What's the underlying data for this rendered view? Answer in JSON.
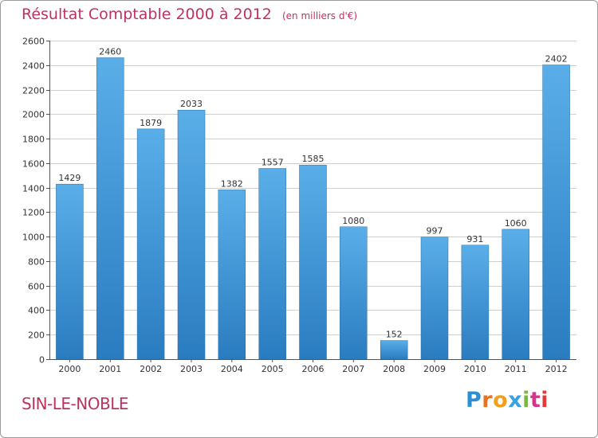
{
  "title": "Résultat Comptable 2000 à 2012",
  "subtitle": "(en milliers d'€)",
  "commune": "SIN-LE-NOBLE",
  "logo": {
    "text": "Proxiti",
    "letters": [
      "P",
      "r",
      "o",
      "x",
      "i",
      "t",
      "i"
    ]
  },
  "colors": {
    "title": "#c0325e",
    "bar_top": "#5aaee8",
    "bar_bottom": "#2a7cc0",
    "gridline": "#d0d0d0"
  },
  "chart_data": {
    "type": "bar",
    "title": "Résultat Comptable 2000 à 2012",
    "subtitle": "(en milliers d'€)",
    "categories": [
      "2000",
      "2001",
      "2002",
      "2003",
      "2004",
      "2005",
      "2006",
      "2007",
      "2008",
      "2009",
      "2010",
      "2011",
      "2012"
    ],
    "values": [
      1429,
      2460,
      1879,
      2033,
      1382,
      1557,
      1585,
      1080,
      152,
      997,
      931,
      1060,
      2402
    ],
    "xlabel": "",
    "ylabel": "",
    "ylim": [
      0,
      2600
    ],
    "yticks": [
      0,
      200,
      400,
      600,
      800,
      1000,
      1200,
      1400,
      1600,
      1800,
      2000,
      2200,
      2400,
      2600
    ],
    "grid": true,
    "legend": "none"
  }
}
